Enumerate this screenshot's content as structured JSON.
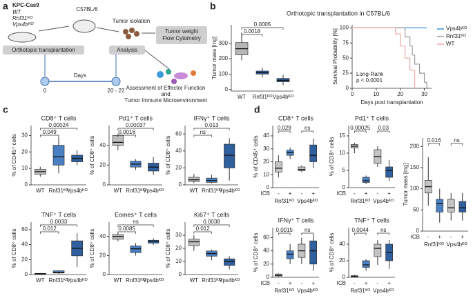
{
  "figure": {
    "letters": [
      "a",
      "b",
      "c",
      "d"
    ],
    "b_title": "Orthotopic transplantation in C57BL/6",
    "diagram": {
      "cell_line": "KPC-Cas9",
      "genotypes": [
        "WT",
        "Rnf31ᴷᴼ",
        "Vps4bᴷᴼ"
      ],
      "mouse": "C57BL/6",
      "isolation": "Tumor isolation",
      "transplant": "Orthotopic transplantation",
      "analysis": "Analysis",
      "readout": [
        "Tumor weight",
        "Flow Cytometry"
      ],
      "days": "Days",
      "day_start": "0",
      "day_end": "20 - 22",
      "assessment": [
        "Assessment of Effector Function",
        "and",
        "Tumor Immune Microenvironment"
      ]
    }
  },
  "chart_data": [
    {
      "type": "box",
      "ylabel": "Tumor mass [mg]",
      "categories": [
        "WT",
        "Rnf31ᴷᴼ",
        "Vps4bᴷᴼ"
      ],
      "ylim": [
        -10,
        420
      ],
      "yticks": [
        0,
        100,
        200,
        300
      ],
      "colors": [
        "#b5b5b5",
        "#2f5f9c",
        "#2f5f9c"
      ],
      "comparisons": [
        "0.0018",
        "0.0005"
      ],
      "boxes": [
        {
          "min": 190,
          "q1": 225,
          "median": 265,
          "q3": 305,
          "max": 370
        },
        {
          "min": 80,
          "q1": 100,
          "median": 110,
          "q3": 120,
          "max": 140
        },
        {
          "min": 30,
          "q1": 50,
          "median": 60,
          "q3": 72,
          "max": 95
        }
      ]
    },
    {
      "type": "survival",
      "ylabel": "Survival Probability [%]",
      "xlabel": "Days post transplantation",
      "xlim": [
        0,
        33
      ],
      "ylim": [
        0,
        105
      ],
      "xticks": [
        0,
        10,
        20,
        30
      ],
      "yticks": [
        0,
        25,
        50,
        75,
        100
      ],
      "annotation": [
        "Long-Rank",
        "p < 0.0001"
      ],
      "series": [
        {
          "name": "Vps4bᴷᴼ",
          "color": "#3c8fd6",
          "x": [
            0,
            31
          ],
          "y": [
            100,
            100
          ]
        },
        {
          "name": "Rnf31ᴷᴼ",
          "color": "#9a9a9a",
          "x": [
            0,
            21,
            22,
            24,
            25,
            26,
            28,
            30,
            31
          ],
          "y": [
            100,
            100,
            85,
            70,
            55,
            40,
            25,
            10,
            0
          ]
        },
        {
          "name": "WT",
          "color": "#f2a7a7",
          "x": [
            0,
            18,
            20,
            22,
            24,
            26
          ],
          "y": [
            100,
            90,
            70,
            50,
            30,
            0
          ]
        }
      ]
    },
    {
      "type": "box",
      "title": "CD8⁺ T cells",
      "ylabel": "% of CD45⁺ cells",
      "categories": [
        "WT",
        "Rnf31ᴷᴼ",
        "Vps4bᴷᴼ"
      ],
      "ylim": [
        0,
        36
      ],
      "yticks": [
        0,
        10,
        20,
        30
      ],
      "colors": [
        "#bdbdbd",
        "#4a80c2",
        "#2f5f9c"
      ],
      "comparisons": [
        "0.049",
        "0.00024"
      ],
      "boxes": [
        {
          "min": 5,
          "q1": 6.5,
          "median": 8,
          "q3": 9.5,
          "max": 11
        },
        {
          "min": 7,
          "q1": 12,
          "median": 17,
          "q3": 24,
          "max": 29
        },
        {
          "min": 12,
          "q1": 14,
          "median": 16,
          "q3": 18,
          "max": 21
        }
      ]
    },
    {
      "type": "box",
      "title": "Pd1⁺ T cells",
      "ylabel": "% of CD8⁺ cells",
      "categories": [
        "WT",
        "Rnf31ᴷᴼ",
        "Vps4bᴷᴼ"
      ],
      "ylim": [
        0,
        60
      ],
      "yticks": [
        0,
        20,
        40
      ],
      "colors": [
        "#bdbdbd",
        "#4a80c2",
        "#2f5f9c"
      ],
      "comparisons": [
        "0.0016",
        "0.00037"
      ],
      "boxes": [
        {
          "min": 35,
          "q1": 40,
          "median": 43,
          "q3": 50,
          "max": 52
        },
        {
          "min": 15,
          "q1": 18,
          "median": 21,
          "q3": 24,
          "max": 26
        },
        {
          "min": 10,
          "q1": 14,
          "median": 18,
          "q3": 22,
          "max": 28
        }
      ]
    },
    {
      "type": "box",
      "title": "IFNγ⁺ T cells",
      "ylabel": "% of CD8⁺ cells",
      "categories": [
        "WT",
        "Rnf31ᴷᴼ",
        "Vps4bᴷᴼ"
      ],
      "ylim": [
        0,
        70
      ],
      "yticks": [
        0,
        20,
        40,
        60
      ],
      "colors": [
        "#bdbdbd",
        "#4a80c2",
        "#2f5f9c"
      ],
      "comparisons": [
        "ns",
        "0.013"
      ],
      "boxes": [
        {
          "min": 2,
          "q1": 4,
          "median": 6,
          "q3": 9,
          "max": 13
        },
        {
          "min": 2,
          "q1": 3,
          "median": 5,
          "q3": 8,
          "max": 12
        },
        {
          "min": 5,
          "q1": 20,
          "median": 35,
          "q3": 48,
          "max": 55
        }
      ]
    },
    {
      "type": "box",
      "title": "TNF⁺ T cells",
      "ylabel": "% of CD8⁺ cells",
      "categories": [
        "WT",
        "Rnf31ᴷᴼ",
        "Vps4bᴷᴼ"
      ],
      "ylim": [
        0,
        70
      ],
      "yticks": [
        0,
        20,
        40,
        60
      ],
      "colors": [
        "#bdbdbd",
        "#4a80c2",
        "#2f5f9c"
      ],
      "comparisons": [
        "0.012",
        "0.0033"
      ],
      "boxes": [
        {
          "min": 0,
          "q1": 0.5,
          "median": 1,
          "q3": 1.5,
          "max": 2
        },
        {
          "min": 1,
          "q1": 2,
          "median": 3,
          "q3": 5,
          "max": 6
        },
        {
          "min": 10,
          "q1": 25,
          "median": 35,
          "q3": 45,
          "max": 55
        }
      ]
    },
    {
      "type": "box",
      "title": "Eomes⁺ T cells",
      "ylabel": "% of CD8⁺ cells",
      "categories": [
        "WT",
        "Rnf31ᴷᴼ",
        "Vps4bᴷᴼ"
      ],
      "ylim": [
        0,
        55
      ],
      "yticks": [
        0,
        20,
        40
      ],
      "colors": [
        "#bdbdbd",
        "#4a80c2",
        "#2f5f9c"
      ],
      "comparisons": [
        "0.0085",
        "ns"
      ],
      "boxes": [
        {
          "min": 35,
          "q1": 37,
          "median": 40,
          "q3": 42,
          "max": 44
        },
        {
          "min": 20,
          "q1": 23,
          "median": 27,
          "q3": 30,
          "max": 33
        },
        {
          "min": 31,
          "q1": 33,
          "median": 35,
          "q3": 36,
          "max": 38
        }
      ]
    },
    {
      "type": "box",
      "title": "Ki67⁺ T cells",
      "ylabel": "% of CD8⁺ cells",
      "categories": [
        "WT",
        "Rnf31ᴷᴼ",
        "Vps4bᴷᴼ"
      ],
      "ylim": [
        0,
        40
      ],
      "yticks": [
        0,
        10,
        20,
        30
      ],
      "colors": [
        "#bdbdbd",
        "#4a80c2",
        "#2f5f9c"
      ],
      "comparisons": [
        "0.012",
        "0.0038"
      ],
      "boxes": [
        {
          "min": 18,
          "q1": 22,
          "median": 25,
          "q3": 27,
          "max": 30
        },
        {
          "min": 11,
          "q1": 14,
          "median": 16,
          "q3": 18,
          "max": 19
        },
        {
          "min": 4,
          "q1": 7,
          "median": 10,
          "q3": 12,
          "max": 14
        }
      ]
    },
    {
      "type": "box",
      "title": "CD8⁺ T cells",
      "ylabel": "% of CD45⁺ cells",
      "hue_label": "ICB",
      "groups": [
        "Rnf31ᴷᴼ",
        "Vps4bᴷᴼ"
      ],
      "categories": [
        "-",
        "+",
        "-",
        "+"
      ],
      "ylim": [
        0,
        48
      ],
      "yticks": [
        0,
        10,
        20,
        30,
        40
      ],
      "colors": [
        "#c4c4c4",
        "#4a80c2",
        "#c4c4c4",
        "#2f5f9c"
      ],
      "comparisons": [
        "0.029",
        "ns"
      ],
      "boxes": [
        {
          "min": 8,
          "q1": 12,
          "median": 15,
          "q3": 20,
          "max": 25
        },
        {
          "min": 22,
          "q1": 25,
          "median": 27,
          "q3": 29,
          "max": 31
        },
        {
          "min": 12,
          "q1": 13,
          "median": 14,
          "q3": 16,
          "max": 17
        },
        {
          "min": 15,
          "q1": 20,
          "median": 25,
          "q3": 33,
          "max": 38
        }
      ]
    },
    {
      "type": "box",
      "title": "Pd1⁺ T cells",
      "ylabel": "% of CD8⁺ cells",
      "hue_label": "ICB",
      "groups": [
        "Rnf31ᴷᴼ",
        "Vps4bᴷᴼ"
      ],
      "categories": [
        "-",
        "+",
        "-",
        "+"
      ],
      "ylim": [
        0,
        18
      ],
      "yticks": [
        0,
        5,
        10,
        15
      ],
      "colors": [
        "#c4c4c4",
        "#4a80c2",
        "#c4c4c4",
        "#2f5f9c"
      ],
      "comparisons": [
        "0.00025",
        "0.03"
      ],
      "boxes": [
        {
          "min": 10,
          "q1": 11.5,
          "median": 12,
          "q3": 12.5,
          "max": 13
        },
        {
          "min": 1,
          "q1": 1.5,
          "median": 2,
          "q3": 3,
          "max": 3.5
        },
        {
          "min": 6,
          "q1": 7,
          "median": 9,
          "q3": 11,
          "max": 12
        },
        {
          "min": 2,
          "q1": 3,
          "median": 5,
          "q3": 6,
          "max": 8
        }
      ]
    },
    {
      "type": "box",
      "title": "IFNγ⁺ T cells",
      "ylabel": "% of CD8⁺ cells",
      "hue_label": "ICB",
      "groups": [
        "Rnf31ᴷᴼ",
        "Vps4bᴷᴼ"
      ],
      "categories": [
        "-",
        "+",
        "-",
        "+"
      ],
      "ylim": [
        0,
        75
      ],
      "yticks": [
        0,
        20,
        40,
        60
      ],
      "colors": [
        "#c4c4c4",
        "#4a80c2",
        "#c4c4c4",
        "#2f5f9c"
      ],
      "comparisons": [
        "0.0015",
        "ns"
      ],
      "boxes": [
        {
          "min": 1,
          "q1": 2,
          "median": 3,
          "q3": 5,
          "max": 6
        },
        {
          "min": 20,
          "q1": 28,
          "median": 35,
          "q3": 40,
          "max": 50
        },
        {
          "min": 20,
          "q1": 30,
          "median": 40,
          "q3": 50,
          "max": 60
        },
        {
          "min": 10,
          "q1": 20,
          "median": 40,
          "q3": 55,
          "max": 65
        }
      ]
    },
    {
      "type": "box",
      "title": "TNF⁺ T cells",
      "ylabel": "% of CD8⁺ cells",
      "hue_label": "ICB",
      "groups": [
        "Rnf31ᴷᴼ",
        "Vps4bᴷᴼ"
      ],
      "categories": [
        "-",
        "+",
        "-",
        "+"
      ],
      "ylim": [
        0,
        60
      ],
      "yticks": [
        0,
        20,
        40
      ],
      "colors": [
        "#c4c4c4",
        "#4a80c2",
        "#c4c4c4",
        "#2f5f9c"
      ],
      "comparisons": [
        "0.0044",
        "ns"
      ],
      "boxes": [
        {
          "min": 0,
          "q1": 0.5,
          "median": 1,
          "q3": 2,
          "max": 3
        },
        {
          "min": 8,
          "q1": 12,
          "median": 15,
          "q3": 20,
          "max": 22
        },
        {
          "min": 15,
          "q1": 25,
          "median": 35,
          "q3": 40,
          "max": 45
        },
        {
          "min": 10,
          "q1": 20,
          "median": 30,
          "q3": 40,
          "max": 45
        }
      ]
    },
    {
      "type": "box",
      "ylabel": "Tumor mass [mg]",
      "hue_label": "ICB",
      "groups": [
        "Rnf31ᴷᴼ",
        "Vps4bᴷᴼ"
      ],
      "categories": [
        "-",
        "+",
        "-",
        "+"
      ],
      "ylim": [
        0,
        220
      ],
      "yticks": [
        0,
        50,
        100,
        150,
        200
      ],
      "colors": [
        "#c4c4c4",
        "#4a80c2",
        "#c4c4c4",
        "#2f5f9c"
      ],
      "comparisons": [
        "0.016",
        "ns"
      ],
      "boxes": [
        {
          "min": 60,
          "q1": 90,
          "median": 105,
          "q3": 120,
          "max": 175
        },
        {
          "min": 20,
          "q1": 45,
          "median": 65,
          "q3": 75,
          "max": 100
        },
        {
          "min": 25,
          "q1": 45,
          "median": 55,
          "q3": 75,
          "max": 90
        },
        {
          "min": 25,
          "q1": 45,
          "median": 55,
          "q3": 70,
          "max": 90
        }
      ]
    }
  ]
}
